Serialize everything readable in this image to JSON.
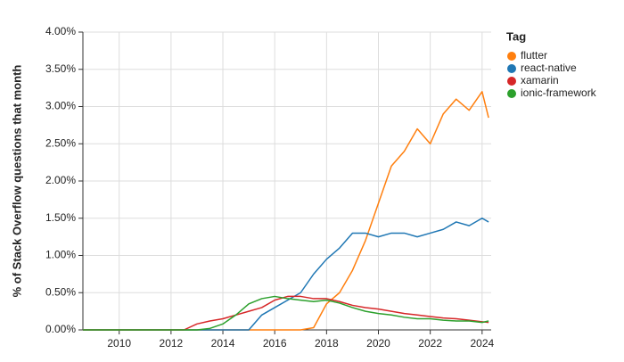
{
  "chart_data": {
    "type": "line",
    "y_label": "% of Stack Overflow questions that month",
    "legend_title": "Tag",
    "legend_position": "right",
    "grid": true,
    "x": [
      2008.6,
      2009,
      2009.5,
      2010,
      2010.5,
      2011,
      2011.5,
      2012,
      2012.5,
      2013,
      2013.5,
      2014,
      2014.5,
      2015,
      2015.5,
      2016,
      2016.5,
      2017,
      2017.5,
      2018,
      2018.5,
      2019,
      2019.5,
      2020,
      2020.5,
      2021,
      2021.5,
      2022,
      2022.5,
      2023,
      2023.5,
      2024,
      2024.25
    ],
    "xlim": [
      2008.6,
      2024.35
    ],
    "xticks": [
      2010,
      2012,
      2014,
      2016,
      2018,
      2020,
      2022,
      2024
    ],
    "ylim": [
      0,
      4
    ],
    "yticks": [
      {
        "value": 0,
        "label": "0.00%"
      },
      {
        "value": 0.5,
        "label": "0.50%"
      },
      {
        "value": 1,
        "label": "1.00%"
      },
      {
        "value": 1.5,
        "label": "1.50%"
      },
      {
        "value": 2,
        "label": "2.00%"
      },
      {
        "value": 2.5,
        "label": "2.50%"
      },
      {
        "value": 3,
        "label": "3.00%"
      },
      {
        "value": 3.5,
        "label": "3.50%"
      },
      {
        "value": 4,
        "label": "4.00%"
      }
    ],
    "series": [
      {
        "name": "flutter",
        "color": "#ff7f0e",
        "values": [
          0,
          0,
          0,
          0,
          0,
          0,
          0,
          0,
          0,
          0,
          0,
          0,
          0,
          0,
          0,
          0,
          0,
          0,
          0.03,
          0.35,
          0.5,
          0.8,
          1.2,
          1.7,
          2.2,
          2.4,
          2.7,
          2.5,
          2.9,
          3.1,
          2.95,
          3.2,
          2.85
        ]
      },
      {
        "name": "react-native",
        "color": "#1f77b4",
        "values": [
          0,
          0,
          0,
          0,
          0,
          0,
          0,
          0,
          0,
          0,
          0,
          0,
          0,
          0,
          0.2,
          0.3,
          0.4,
          0.5,
          0.75,
          0.95,
          1.1,
          1.3,
          1.3,
          1.25,
          1.3,
          1.3,
          1.25,
          1.3,
          1.35,
          1.45,
          1.4,
          1.5,
          1.45
        ]
      },
      {
        "name": "xamarin",
        "color": "#d62728",
        "values": [
          0,
          0,
          0,
          0,
          0,
          0,
          0,
          0,
          0,
          0.08,
          0.12,
          0.15,
          0.2,
          0.25,
          0.3,
          0.4,
          0.45,
          0.45,
          0.42,
          0.42,
          0.38,
          0.33,
          0.3,
          0.28,
          0.25,
          0.22,
          0.2,
          0.18,
          0.16,
          0.15,
          0.13,
          0.11,
          0.1
        ]
      },
      {
        "name": "ionic-framework",
        "color": "#2ca02c",
        "values": [
          0,
          0,
          0,
          0,
          0,
          0,
          0,
          0,
          0,
          0,
          0.02,
          0.08,
          0.2,
          0.35,
          0.42,
          0.45,
          0.42,
          0.4,
          0.38,
          0.4,
          0.36,
          0.3,
          0.25,
          0.22,
          0.2,
          0.17,
          0.15,
          0.15,
          0.13,
          0.12,
          0.12,
          0.1,
          0.12
        ]
      }
    ]
  }
}
